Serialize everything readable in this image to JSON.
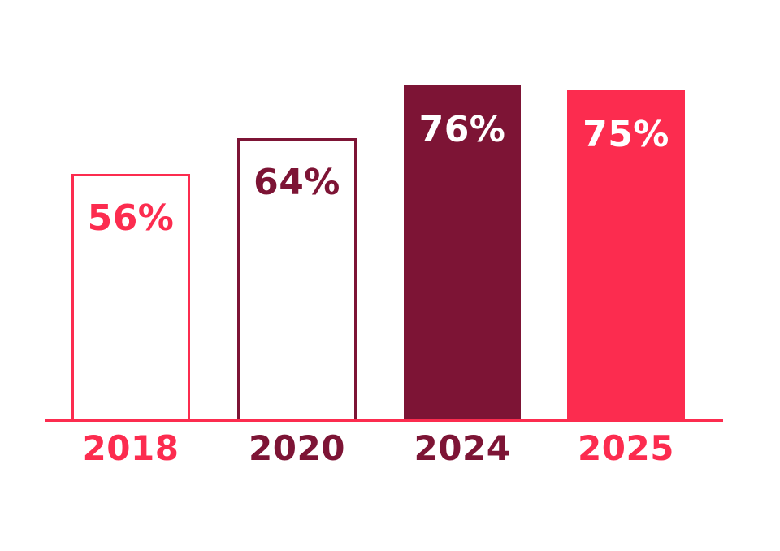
{
  "page": {
    "background": "#FFFFFF"
  },
  "chart_data": {
    "type": "bar",
    "title": "",
    "xlabel": "",
    "ylabel": "",
    "ylim": [
      0,
      100
    ],
    "grid": false,
    "legend": false,
    "categories": [
      "2018",
      "2020",
      "2024",
      "2025"
    ],
    "values": [
      56,
      64,
      76,
      75
    ],
    "axis_color": "#FC2C4F",
    "colors": {
      "pink": "#FC2C4F",
      "maroon": "#7D1435",
      "white": "#FFFFFF"
    },
    "bars": [
      {
        "category": "2018",
        "value": 56,
        "value_label": "56%",
        "fill": "#FFFFFF",
        "stroke": "#FC2C4F",
        "value_label_color": "#FC2C4F",
        "category_color": "#FC2C4F"
      },
      {
        "category": "2020",
        "value": 64,
        "value_label": "64%",
        "fill": "#FFFFFF",
        "stroke": "#7D1435",
        "value_label_color": "#7D1435",
        "category_color": "#7D1435"
      },
      {
        "category": "2024",
        "value": 76,
        "value_label": "76%",
        "fill": "#7D1435",
        "stroke": "#7D1435",
        "value_label_color": "#FFFFFF",
        "category_color": "#7D1435"
      },
      {
        "category": "2025",
        "value": 75,
        "value_label": "75%",
        "fill": "#FC2C4F",
        "stroke": "#FC2C4F",
        "value_label_color": "#FFFFFF",
        "category_color": "#FC2C4F"
      }
    ]
  }
}
